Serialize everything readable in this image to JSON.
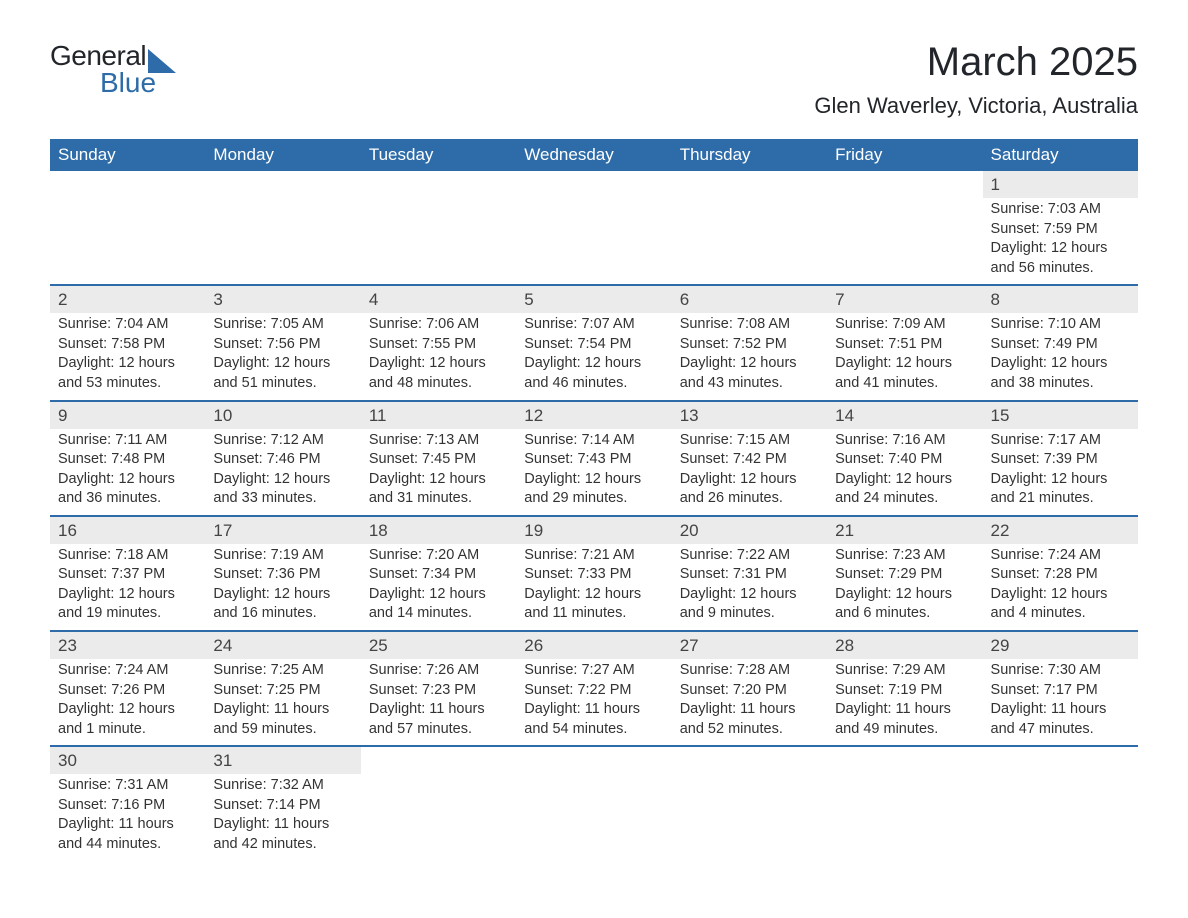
{
  "logo": {
    "text_general": "General",
    "text_blue": "Blue"
  },
  "header": {
    "month_title": "March 2025",
    "location": "Glen Waverley, Victoria, Australia"
  },
  "colors": {
    "header_bg": "#2d6ca8",
    "header_text": "#ffffff",
    "daynum_bg": "#ebebeb",
    "row_border": "#2d6ca8",
    "body_text": "#333333",
    "title_text": "#22252a"
  },
  "weekdays": [
    "Sunday",
    "Monday",
    "Tuesday",
    "Wednesday",
    "Thursday",
    "Friday",
    "Saturday"
  ],
  "weeks": [
    [
      null,
      null,
      null,
      null,
      null,
      null,
      {
        "day": "1",
        "sunrise": "Sunrise: 7:03 AM",
        "sunset": "Sunset: 7:59 PM",
        "daylight": "Daylight: 12 hours and 56 minutes."
      }
    ],
    [
      {
        "day": "2",
        "sunrise": "Sunrise: 7:04 AM",
        "sunset": "Sunset: 7:58 PM",
        "daylight": "Daylight: 12 hours and 53 minutes."
      },
      {
        "day": "3",
        "sunrise": "Sunrise: 7:05 AM",
        "sunset": "Sunset: 7:56 PM",
        "daylight": "Daylight: 12 hours and 51 minutes."
      },
      {
        "day": "4",
        "sunrise": "Sunrise: 7:06 AM",
        "sunset": "Sunset: 7:55 PM",
        "daylight": "Daylight: 12 hours and 48 minutes."
      },
      {
        "day": "5",
        "sunrise": "Sunrise: 7:07 AM",
        "sunset": "Sunset: 7:54 PM",
        "daylight": "Daylight: 12 hours and 46 minutes."
      },
      {
        "day": "6",
        "sunrise": "Sunrise: 7:08 AM",
        "sunset": "Sunset: 7:52 PM",
        "daylight": "Daylight: 12 hours and 43 minutes."
      },
      {
        "day": "7",
        "sunrise": "Sunrise: 7:09 AM",
        "sunset": "Sunset: 7:51 PM",
        "daylight": "Daylight: 12 hours and 41 minutes."
      },
      {
        "day": "8",
        "sunrise": "Sunrise: 7:10 AM",
        "sunset": "Sunset: 7:49 PM",
        "daylight": "Daylight: 12 hours and 38 minutes."
      }
    ],
    [
      {
        "day": "9",
        "sunrise": "Sunrise: 7:11 AM",
        "sunset": "Sunset: 7:48 PM",
        "daylight": "Daylight: 12 hours and 36 minutes."
      },
      {
        "day": "10",
        "sunrise": "Sunrise: 7:12 AM",
        "sunset": "Sunset: 7:46 PM",
        "daylight": "Daylight: 12 hours and 33 minutes."
      },
      {
        "day": "11",
        "sunrise": "Sunrise: 7:13 AM",
        "sunset": "Sunset: 7:45 PM",
        "daylight": "Daylight: 12 hours and 31 minutes."
      },
      {
        "day": "12",
        "sunrise": "Sunrise: 7:14 AM",
        "sunset": "Sunset: 7:43 PM",
        "daylight": "Daylight: 12 hours and 29 minutes."
      },
      {
        "day": "13",
        "sunrise": "Sunrise: 7:15 AM",
        "sunset": "Sunset: 7:42 PM",
        "daylight": "Daylight: 12 hours and 26 minutes."
      },
      {
        "day": "14",
        "sunrise": "Sunrise: 7:16 AM",
        "sunset": "Sunset: 7:40 PM",
        "daylight": "Daylight: 12 hours and 24 minutes."
      },
      {
        "day": "15",
        "sunrise": "Sunrise: 7:17 AM",
        "sunset": "Sunset: 7:39 PM",
        "daylight": "Daylight: 12 hours and 21 minutes."
      }
    ],
    [
      {
        "day": "16",
        "sunrise": "Sunrise: 7:18 AM",
        "sunset": "Sunset: 7:37 PM",
        "daylight": "Daylight: 12 hours and 19 minutes."
      },
      {
        "day": "17",
        "sunrise": "Sunrise: 7:19 AM",
        "sunset": "Sunset: 7:36 PM",
        "daylight": "Daylight: 12 hours and 16 minutes."
      },
      {
        "day": "18",
        "sunrise": "Sunrise: 7:20 AM",
        "sunset": "Sunset: 7:34 PM",
        "daylight": "Daylight: 12 hours and 14 minutes."
      },
      {
        "day": "19",
        "sunrise": "Sunrise: 7:21 AM",
        "sunset": "Sunset: 7:33 PM",
        "daylight": "Daylight: 12 hours and 11 minutes."
      },
      {
        "day": "20",
        "sunrise": "Sunrise: 7:22 AM",
        "sunset": "Sunset: 7:31 PM",
        "daylight": "Daylight: 12 hours and 9 minutes."
      },
      {
        "day": "21",
        "sunrise": "Sunrise: 7:23 AM",
        "sunset": "Sunset: 7:29 PM",
        "daylight": "Daylight: 12 hours and 6 minutes."
      },
      {
        "day": "22",
        "sunrise": "Sunrise: 7:24 AM",
        "sunset": "Sunset: 7:28 PM",
        "daylight": "Daylight: 12 hours and 4 minutes."
      }
    ],
    [
      {
        "day": "23",
        "sunrise": "Sunrise: 7:24 AM",
        "sunset": "Sunset: 7:26 PM",
        "daylight": "Daylight: 12 hours and 1 minute."
      },
      {
        "day": "24",
        "sunrise": "Sunrise: 7:25 AM",
        "sunset": "Sunset: 7:25 PM",
        "daylight": "Daylight: 11 hours and 59 minutes."
      },
      {
        "day": "25",
        "sunrise": "Sunrise: 7:26 AM",
        "sunset": "Sunset: 7:23 PM",
        "daylight": "Daylight: 11 hours and 57 minutes."
      },
      {
        "day": "26",
        "sunrise": "Sunrise: 7:27 AM",
        "sunset": "Sunset: 7:22 PM",
        "daylight": "Daylight: 11 hours and 54 minutes."
      },
      {
        "day": "27",
        "sunrise": "Sunrise: 7:28 AM",
        "sunset": "Sunset: 7:20 PM",
        "daylight": "Daylight: 11 hours and 52 minutes."
      },
      {
        "day": "28",
        "sunrise": "Sunrise: 7:29 AM",
        "sunset": "Sunset: 7:19 PM",
        "daylight": "Daylight: 11 hours and 49 minutes."
      },
      {
        "day": "29",
        "sunrise": "Sunrise: 7:30 AM",
        "sunset": "Sunset: 7:17 PM",
        "daylight": "Daylight: 11 hours and 47 minutes."
      }
    ],
    [
      {
        "day": "30",
        "sunrise": "Sunrise: 7:31 AM",
        "sunset": "Sunset: 7:16 PM",
        "daylight": "Daylight: 11 hours and 44 minutes."
      },
      {
        "day": "31",
        "sunrise": "Sunrise: 7:32 AM",
        "sunset": "Sunset: 7:14 PM",
        "daylight": "Daylight: 11 hours and 42 minutes."
      },
      null,
      null,
      null,
      null,
      null
    ]
  ]
}
